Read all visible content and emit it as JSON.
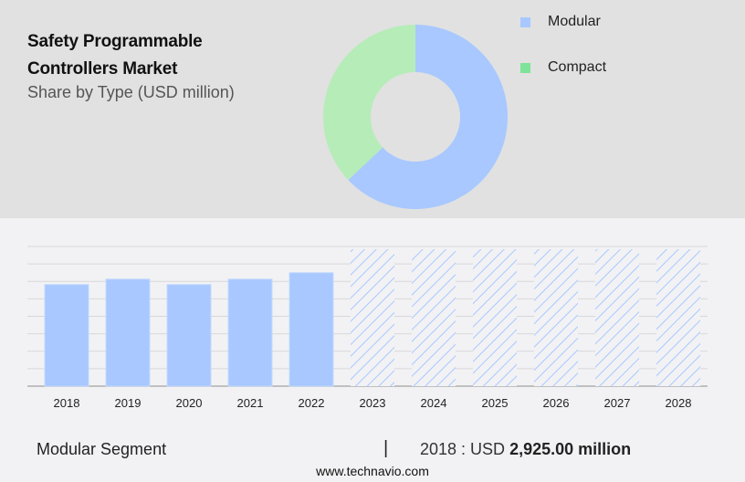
{
  "header": {
    "title_line1": "Safety Programmable",
    "title_line2": "Controllers Market",
    "subtitle": "Share by Type (USD million)"
  },
  "legend": [
    {
      "label": "Modular",
      "color": "#a8c8ff"
    },
    {
      "label": "Compact",
      "color": "#7ee39a"
    }
  ],
  "footer": {
    "segment": "Modular Segment",
    "separator": "|",
    "year_prefix": "2018 : USD",
    "value": "2,925.00 million",
    "source": "www.technavio.com"
  },
  "chart_data": [
    {
      "type": "pie",
      "subtype": "donut",
      "title": "Safety Programmable Controllers Market - Share by Type (USD million)",
      "categories": [
        "Modular",
        "Compact"
      ],
      "values": [
        63,
        37
      ],
      "colors": [
        "#a8c8ff",
        "#b6ecb8"
      ],
      "legend_position": "right"
    },
    {
      "type": "bar",
      "title": "Modular Segment",
      "categories": [
        "2018",
        "2019",
        "2020",
        "2021",
        "2022",
        "2023",
        "2024",
        "2025",
        "2026",
        "2027",
        "2028"
      ],
      "series": [
        {
          "name": "Modular",
          "values": [
            2925,
            3080,
            2925,
            3080,
            3265,
            null,
            null,
            null,
            null,
            null,
            null
          ],
          "forecast": [
            false,
            false,
            false,
            false,
            false,
            true,
            true,
            true,
            true,
            true,
            true
          ]
        }
      ],
      "annotation": "2018 : USD 2,925.00 million",
      "xlabel": "",
      "ylabel": "",
      "y_tick_labels_visible": false,
      "grid": true,
      "gridlines": 8,
      "ylim": [
        0,
        4020
      ],
      "bar_color": "#a8c8ff",
      "forecast_style": "hatched"
    }
  ]
}
